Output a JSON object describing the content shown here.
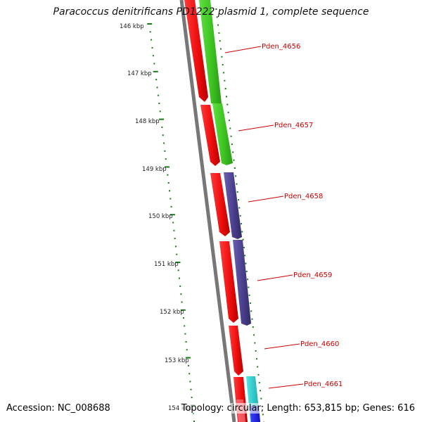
{
  "title": "Paracoccus denitrificans PD1222 plasmid 1, complete sequence",
  "footer": {
    "accession": "Accession: NC_008688",
    "info": "Topology: circular; Length: 653,815 bp; Genes: 616"
  },
  "colors": {
    "backbone": "#777777",
    "ruler": "#1a7a1a",
    "label": "#cc0000",
    "red": "#ee1111",
    "green": "#44cc22",
    "purple": "#4a3f8c",
    "cyan": "#22cccc",
    "blue": "#1a1aee"
  },
  "ticks": [
    {
      "label": "146 kbp"
    },
    {
      "label": "147 kbp"
    },
    {
      "label": "148 kbp"
    },
    {
      "label": "149 kbp"
    },
    {
      "label": "150 kbp"
    },
    {
      "label": "151 kbp"
    },
    {
      "label": "152 kbp"
    },
    {
      "label": "153 kbp"
    },
    {
      "label": "154 kbp"
    }
  ],
  "genes": [
    {
      "label": "Pden_4656"
    },
    {
      "label": "Pden_4657"
    },
    {
      "label": "Pden_4658"
    },
    {
      "label": "Pden_4659"
    },
    {
      "label": "Pden_4660"
    },
    {
      "label": "Pden_4661"
    }
  ]
}
